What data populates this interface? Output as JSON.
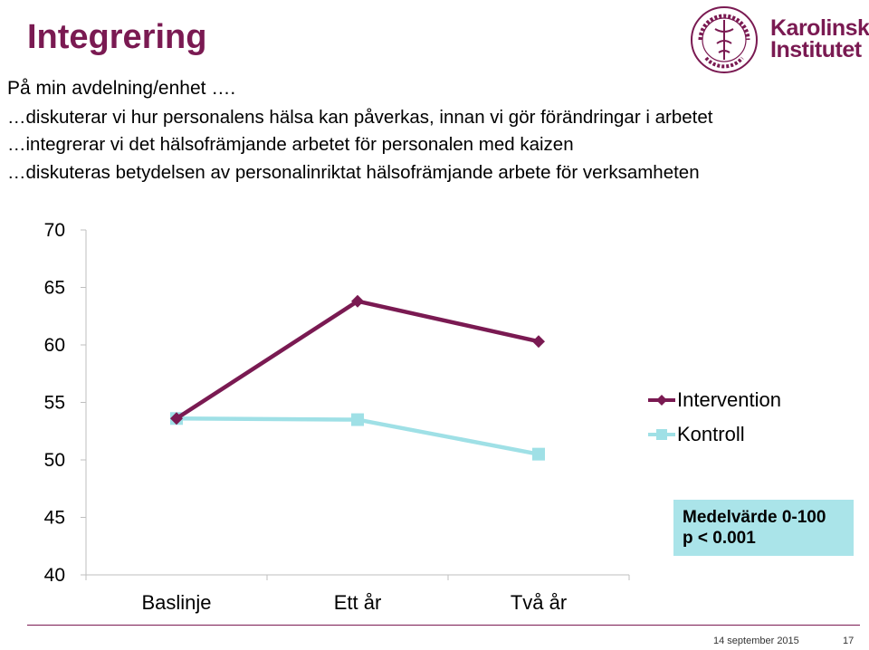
{
  "slide": {
    "title": "Integrering",
    "intro": "På min avdelning/enhet ….",
    "lines": [
      "…diskuterar vi hur personalens hälsa kan påverkas, innan vi gör förändringar i arbetet",
      "…integrerar vi det hälsofrämjande arbetet för personalen med kaizen",
      "…diskuteras betydelsen av personalinriktat hälsofrämjande arbete för verksamheten"
    ],
    "logo": {
      "ring_text": "KAROLINSKA INSTITUTET · ANNO 1810",
      "name_line1": "Karolinska",
      "name_line2": "Institutet"
    },
    "note_line1": "Medelvärde 0-100",
    "note_line2": "p < 0.001",
    "footer_date": "14 september 2015",
    "footer_page": "17",
    "colors": {
      "brand": "#7a1a52",
      "control": "#9fe0e6",
      "note_bg": "#aae4e9"
    }
  },
  "chart_data": {
    "type": "line",
    "categories": [
      "Baslinje",
      "Ett år",
      "Två år"
    ],
    "ylim": [
      40,
      70
    ],
    "yticks": [
      70,
      65,
      60,
      55,
      50,
      45,
      40
    ],
    "series": [
      {
        "name": "Intervention",
        "values": [
          53.6,
          63.8,
          60.3
        ],
        "color": "#7a1a52",
        "marker": "diamond"
      },
      {
        "name": "Kontroll",
        "values": [
          53.6,
          53.5,
          50.5
        ],
        "color": "#9fe0e6",
        "marker": "square"
      }
    ],
    "legend": "right",
    "grid": false
  }
}
